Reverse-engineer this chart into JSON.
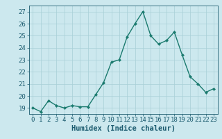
{
  "x": [
    0,
    1,
    2,
    3,
    4,
    5,
    6,
    7,
    8,
    9,
    10,
    11,
    12,
    13,
    14,
    15,
    16,
    17,
    18,
    19,
    20,
    21,
    22,
    23
  ],
  "y": [
    19.0,
    18.7,
    19.6,
    19.2,
    19.0,
    19.2,
    19.1,
    19.1,
    20.1,
    21.1,
    22.8,
    23.0,
    24.9,
    26.0,
    27.0,
    25.0,
    24.3,
    24.6,
    25.3,
    23.4,
    21.6,
    21.0,
    20.3,
    20.6
  ],
  "line_color": "#1a7a6e",
  "marker": "D",
  "marker_size": 2.2,
  "bg_color": "#cce8ee",
  "grid_color": "#a8cfd6",
  "ylim": [
    18.5,
    27.5
  ],
  "yticks": [
    19,
    20,
    21,
    22,
    23,
    24,
    25,
    26,
    27
  ],
  "xticks": [
    0,
    1,
    2,
    3,
    4,
    5,
    6,
    7,
    8,
    9,
    10,
    11,
    12,
    13,
    14,
    15,
    16,
    17,
    18,
    19,
    20,
    21,
    22,
    23
  ],
  "tick_color": "#1a5a6e",
  "label_color": "#1a5a6e",
  "font_size": 6.5,
  "xlabel": "Humidex (Indice chaleur)",
  "xlabel_fontsize": 7.5,
  "line_width": 1.0,
  "xlim": [
    -0.5,
    23.5
  ]
}
